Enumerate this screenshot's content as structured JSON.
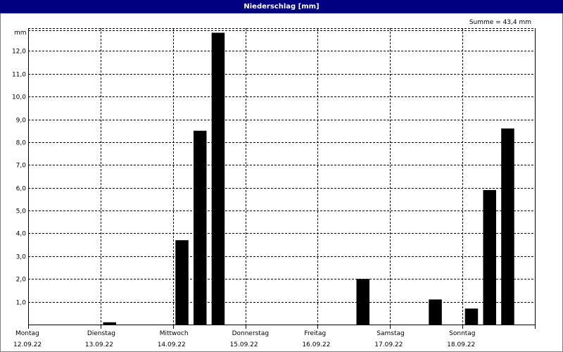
{
  "window": {
    "title": "Niederschlag [mm]"
  },
  "chart_data": {
    "type": "bar",
    "title": "Niederschlag [mm]",
    "annotation": "Summe = 43,4 mm",
    "ylabel": "mm",
    "xlabel": "",
    "ylim": [
      0,
      13
    ],
    "y_ticks": [
      "1,0",
      "2,0",
      "3,0",
      "4,0",
      "5,0",
      "6,0",
      "7,0",
      "8,0",
      "9,0",
      "10,0",
      "11,0",
      "12,0"
    ],
    "y_tick_values": [
      1,
      2,
      3,
      4,
      5,
      6,
      7,
      8,
      9,
      10,
      11,
      12
    ],
    "days": [
      {
        "weekday": "Montag",
        "date": "12.09.22"
      },
      {
        "weekday": "Dienstag",
        "date": "13.09.22"
      },
      {
        "weekday": "Mittwoch",
        "date": "14.09.22"
      },
      {
        "weekday": "Donnerstag",
        "date": "15.09.22"
      },
      {
        "weekday": "Freitag",
        "date": "16.09.22"
      },
      {
        "weekday": "Samstag",
        "date": "17.09.22"
      },
      {
        "weekday": "Sonntag",
        "date": "18.09.22"
      }
    ],
    "bars_per_day": 4,
    "grid": true,
    "bar_color": "#000000",
    "series": [
      {
        "values": [
          0,
          0,
          0,
          0,
          0.1,
          0,
          0,
          0,
          3.7,
          8.5,
          12.8,
          0,
          0,
          0,
          0,
          0,
          0,
          0,
          2.0,
          0,
          0,
          0,
          1.1,
          0,
          0.7,
          5.9,
          8.6,
          0
        ]
      }
    ]
  }
}
